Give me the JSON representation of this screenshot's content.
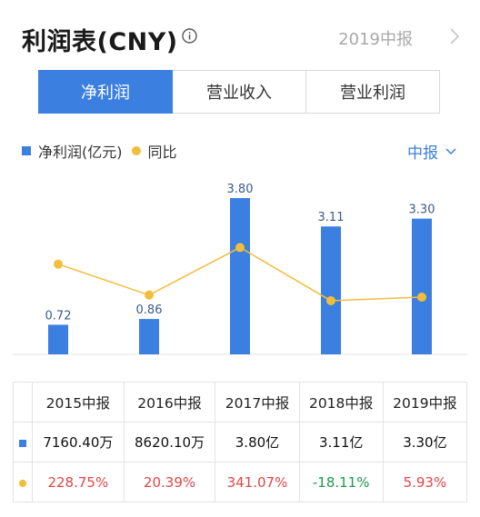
{
  "header": {
    "title": "利润表(CNY)",
    "period": "2019中报"
  },
  "tabs": [
    {
      "label": "净利润",
      "active": true
    },
    {
      "label": "营业收入",
      "active": false
    },
    {
      "label": "营业利润",
      "active": false
    }
  ],
  "legend": {
    "bar_label": "净利润(亿元)",
    "line_label": "同比"
  },
  "report_select": "中报",
  "colors": {
    "accent": "#3b7fe0",
    "line": "#f3bd3c",
    "positive": "#e24545",
    "negative": "#1d9a4e"
  },
  "chart_data": {
    "type": "bar",
    "categories": [
      "2015中报",
      "2016中报",
      "2017中报",
      "2018中报",
      "2019中报"
    ],
    "series": [
      {
        "name": "净利润(亿元)",
        "type": "bar",
        "values": [
          0.72,
          0.86,
          3.8,
          3.11,
          3.3
        ],
        "labels": [
          "0.72",
          "0.86",
          "3.80",
          "3.11",
          "3.30"
        ]
      },
      {
        "name": "同比",
        "type": "line",
        "values": [
          228.75,
          20.39,
          341.07,
          -18.11,
          5.93
        ]
      }
    ]
  },
  "table": {
    "headers": [
      "2015中报",
      "2016中报",
      "2017中报",
      "2018中报",
      "2019中报"
    ],
    "net_profit": [
      "7160.40万",
      "8620.10万",
      "3.80亿",
      "3.11亿",
      "3.30亿"
    ],
    "yoy": [
      "228.75%",
      "20.39%",
      "341.07%",
      "-18.11%",
      "5.93%"
    ]
  }
}
